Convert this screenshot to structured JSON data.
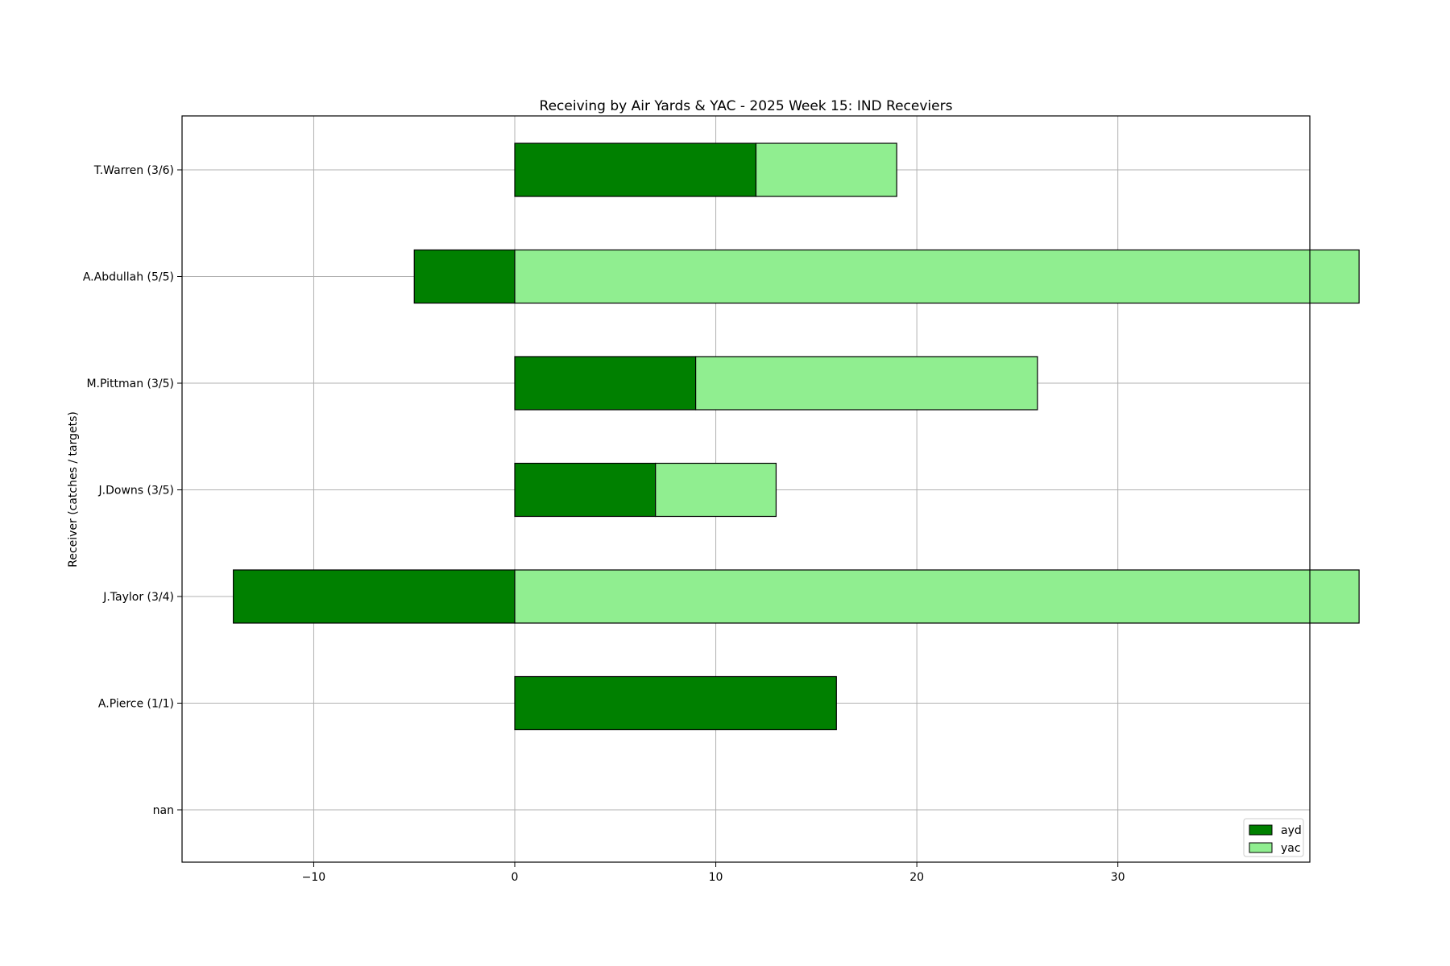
{
  "chart_data": {
    "type": "bar",
    "orientation": "horizontal",
    "stacked": true,
    "title": "Receiving by Air Yards & YAC - 2025 Week 15: IND Receviers",
    "xlabel": "",
    "ylabel": "Receiver (catches / targets)",
    "categories": [
      "nan",
      "A.Pierce (1/1)",
      "J.Taylor (3/4)",
      "J.Downs (3/5)",
      "M.Pittman (3/5)",
      "A.Abdullah (5/5)",
      "T.Warren (3/6)"
    ],
    "series": [
      {
        "name": "ayd",
        "color": "#008000",
        "values": [
          0,
          16,
          -14,
          7,
          9,
          -5,
          12
        ]
      },
      {
        "name": "yac",
        "color": "#90ee90",
        "values": [
          0,
          0,
          42,
          6,
          17,
          42,
          7
        ]
      }
    ],
    "xlim": [
      -16.55,
      39.55
    ],
    "xticks": [
      -10,
      0,
      10,
      20,
      30
    ],
    "xtick_labels": [
      "−10",
      "0",
      "10",
      "20",
      "30"
    ],
    "grid": true,
    "legend": {
      "position": "lower-right",
      "entries": [
        "ayd",
        "yac"
      ]
    },
    "edge_color": "#000000",
    "grid_color": "#b0b0b0"
  }
}
